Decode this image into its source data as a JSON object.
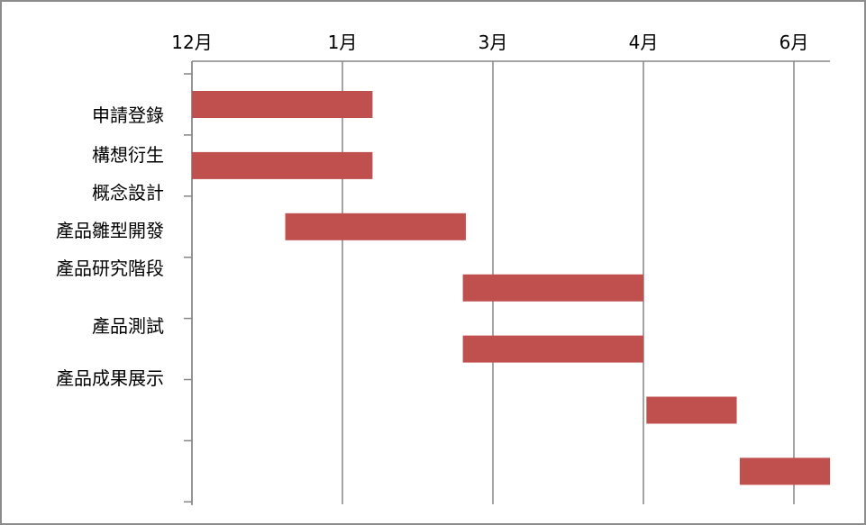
{
  "chart_data": {
    "type": "gantt",
    "x_ticks": [
      "12月",
      "1月",
      "3月",
      "4月",
      "6月"
    ],
    "categories": [
      "申請登錄",
      "構想衍生",
      "概念設計",
      "產品雛型開發",
      "產品研究階段",
      "產品測試",
      "產品成果展示"
    ],
    "tasks": [
      {
        "start": 0.0,
        "end": 1.2
      },
      {
        "start": 0.0,
        "end": 1.2
      },
      {
        "start": 0.62,
        "end": 1.82
      },
      {
        "start": 1.8,
        "end": 3.0
      },
      {
        "start": 1.8,
        "end": 3.0
      },
      {
        "start": 3.02,
        "end": 3.62
      },
      {
        "start": 3.64,
        "end": 4.24
      }
    ],
    "xlim": [
      0,
      4.24
    ],
    "grid": true,
    "bar_color": "#c0504d",
    "grid_color": "#868686"
  }
}
